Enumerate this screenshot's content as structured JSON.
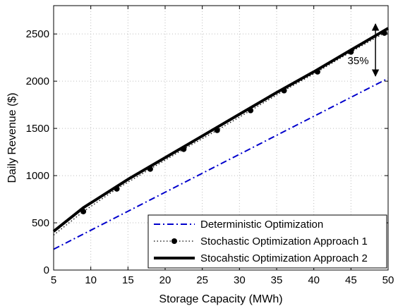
{
  "chart_data": {
    "type": "line",
    "xlabel": "Storage Capacity (MWh)",
    "ylabel": "Daily Revenue ($)",
    "xlim": [
      5,
      50
    ],
    "ylim": [
      0,
      2800
    ],
    "xticks": [
      5,
      10,
      15,
      20,
      25,
      30,
      35,
      40,
      45,
      50
    ],
    "yticks": [
      0,
      500,
      1000,
      1500,
      2000,
      2500
    ],
    "grid": true,
    "legend_position": "bottom-right",
    "series": [
      {
        "name": "Deterministic Optimization",
        "color": "#0000cc",
        "line_style": "dash-dot",
        "marker": "none",
        "x": [
          5,
          50
        ],
        "y": [
          220,
          2030
        ]
      },
      {
        "name": "Stochastic Optimization Approach 1",
        "color": "#000000",
        "line_style": "dotted",
        "marker": "circle",
        "x": [
          5,
          9,
          13.5,
          18,
          22.5,
          27,
          31.5,
          36,
          40.5,
          45,
          49.5
        ],
        "y": [
          370,
          620,
          860,
          1070,
          1280,
          1480,
          1690,
          1900,
          2100,
          2310,
          2510
        ]
      },
      {
        "name": "Stocahstic Optimization Approach 2",
        "color": "#000000",
        "line_style": "solid",
        "marker": "none",
        "x": [
          5,
          9,
          15,
          20,
          25,
          30,
          35,
          40,
          45,
          50
        ],
        "y": [
          410,
          660,
          960,
          1190,
          1420,
          1650,
          1880,
          2100,
          2330,
          2560
        ]
      }
    ],
    "annotations": [
      {
        "text": "35%",
        "x": 47.3,
        "y": 2150
      }
    ]
  }
}
